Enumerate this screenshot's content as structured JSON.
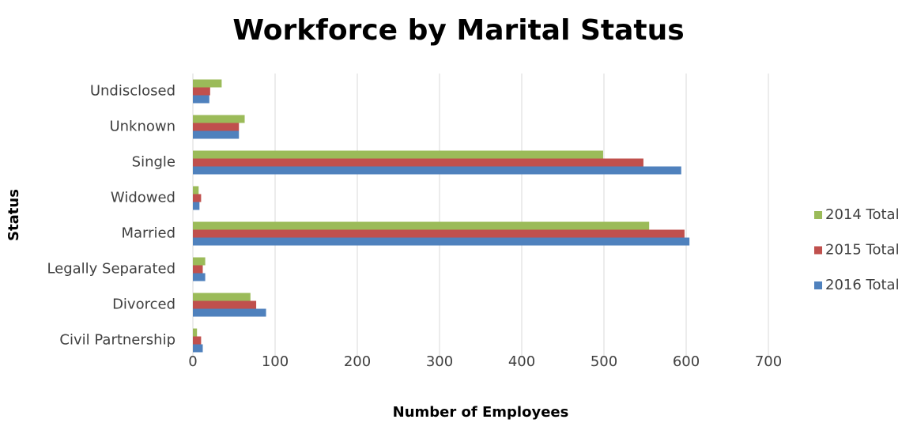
{
  "chart_data": {
    "type": "bar",
    "orientation": "horizontal",
    "title": "Workforce by Marital Status",
    "xlabel": "Number of Employees",
    "ylabel": "Status",
    "categories": [
      "Civil Partnership",
      "Divorced",
      "Legally Separated",
      "Married",
      "Widowed",
      "Single",
      "Unknown",
      "Undisclosed"
    ],
    "series": [
      {
        "name": "2014 Total",
        "color": "#9bbb59",
        "values": [
          5,
          70,
          15,
          555,
          7,
          499,
          63,
          35
        ]
      },
      {
        "name": "2015 Total",
        "color": "#c0504d",
        "values": [
          10,
          77,
          12,
          598,
          10,
          548,
          56,
          21
        ]
      },
      {
        "name": "2016 Total",
        "color": "#4f81bd",
        "values": [
          12,
          89,
          15,
          604,
          8,
          594,
          56,
          20
        ]
      }
    ],
    "xlim": [
      0,
      700
    ],
    "xticks": [
      0,
      100,
      200,
      300,
      400,
      500,
      600,
      700
    ],
    "grid": true,
    "legend": "right"
  }
}
